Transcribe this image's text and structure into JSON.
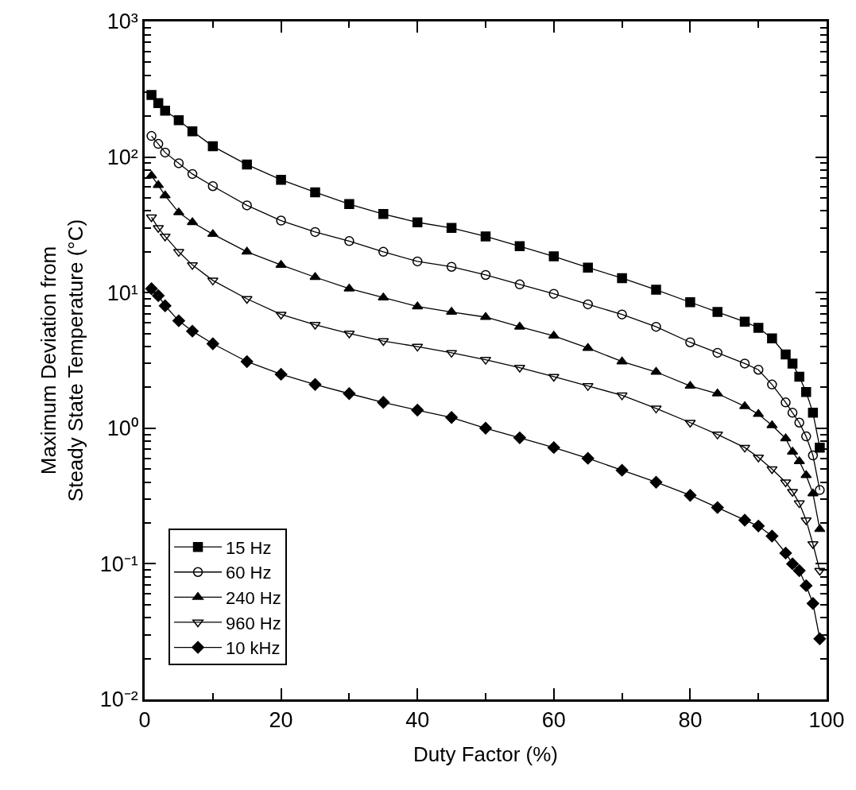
{
  "chart_data": {
    "type": "line",
    "xlabel": "Duty Factor (%)",
    "ylabel": "Maximum Deviation from\nSteady State Temperature (°C)",
    "x": [
      1,
      2,
      3,
      5,
      7,
      10,
      15,
      20,
      25,
      30,
      35,
      40,
      45,
      50,
      55,
      60,
      65,
      70,
      75,
      80,
      84,
      88,
      90,
      92,
      94,
      95,
      96,
      97,
      98,
      99
    ],
    "series": [
      {
        "name": "15 Hz",
        "color": "#000000",
        "marker": "square",
        "values": [
          287,
          250,
          220,
          187,
          155,
          120,
          88,
          68,
          55,
          45,
          38,
          33,
          30,
          26,
          22,
          18.5,
          15.3,
          12.8,
          10.5,
          8.5,
          7.2,
          6.1,
          5.5,
          4.6,
          3.5,
          3.0,
          2.4,
          1.85,
          1.3,
          0.72
        ]
      },
      {
        "name": "60 Hz",
        "color": "#000000",
        "marker": "circle-open",
        "values": [
          143,
          125,
          108,
          90,
          75,
          61,
          44,
          34,
          28,
          24,
          20,
          17,
          15.5,
          13.5,
          11.5,
          9.8,
          8.2,
          6.9,
          5.6,
          4.3,
          3.6,
          3.0,
          2.7,
          2.1,
          1.55,
          1.3,
          1.1,
          0.87,
          0.63,
          0.35
        ]
      },
      {
        "name": "240 Hz",
        "color": "#000000",
        "marker": "triangle",
        "values": [
          73,
          62,
          52,
          39,
          33,
          27,
          20,
          16,
          13,
          10.7,
          9.2,
          7.9,
          7.2,
          6.6,
          5.6,
          4.8,
          3.9,
          3.1,
          2.6,
          2.05,
          1.8,
          1.45,
          1.27,
          1.05,
          0.84,
          0.67,
          0.57,
          0.45,
          0.33,
          0.18
        ]
      },
      {
        "name": "960 Hz",
        "color": "#000000",
        "marker": "triangle-down-open",
        "values": [
          36,
          30,
          26,
          20,
          16,
          12.3,
          9,
          6.9,
          5.8,
          5.0,
          4.4,
          4.0,
          3.6,
          3.2,
          2.8,
          2.4,
          2.05,
          1.75,
          1.4,
          1.1,
          0.9,
          0.72,
          0.61,
          0.5,
          0.4,
          0.34,
          0.28,
          0.21,
          0.14,
          0.089
        ]
      },
      {
        "name": "10 kHz",
        "color": "#000000",
        "marker": "diamond",
        "values": [
          10.7,
          9.5,
          8,
          6.2,
          5.2,
          4.2,
          3.1,
          2.5,
          2.1,
          1.8,
          1.55,
          1.36,
          1.2,
          1.0,
          0.85,
          0.72,
          0.6,
          0.49,
          0.4,
          0.32,
          0.26,
          0.21,
          0.19,
          0.16,
          0.12,
          0.1,
          0.089,
          0.069,
          0.051,
          0.028
        ]
      }
    ],
    "xlim": [
      0,
      100
    ],
    "xticks": [
      0,
      20,
      40,
      60,
      80,
      100
    ],
    "ylim": [
      0.01,
      1000
    ],
    "yticks": [
      {
        "value": 0.01,
        "label": "10⁻²"
      },
      {
        "value": 0.1,
        "label": "10⁻¹"
      },
      {
        "value": 1,
        "label": "10⁰"
      },
      {
        "value": 10,
        "label": "10¹"
      },
      {
        "value": 100,
        "label": "10²"
      },
      {
        "value": 1000,
        "label": "10³"
      }
    ],
    "log": "y",
    "legend": "bottom left",
    "line_style": "solid"
  }
}
